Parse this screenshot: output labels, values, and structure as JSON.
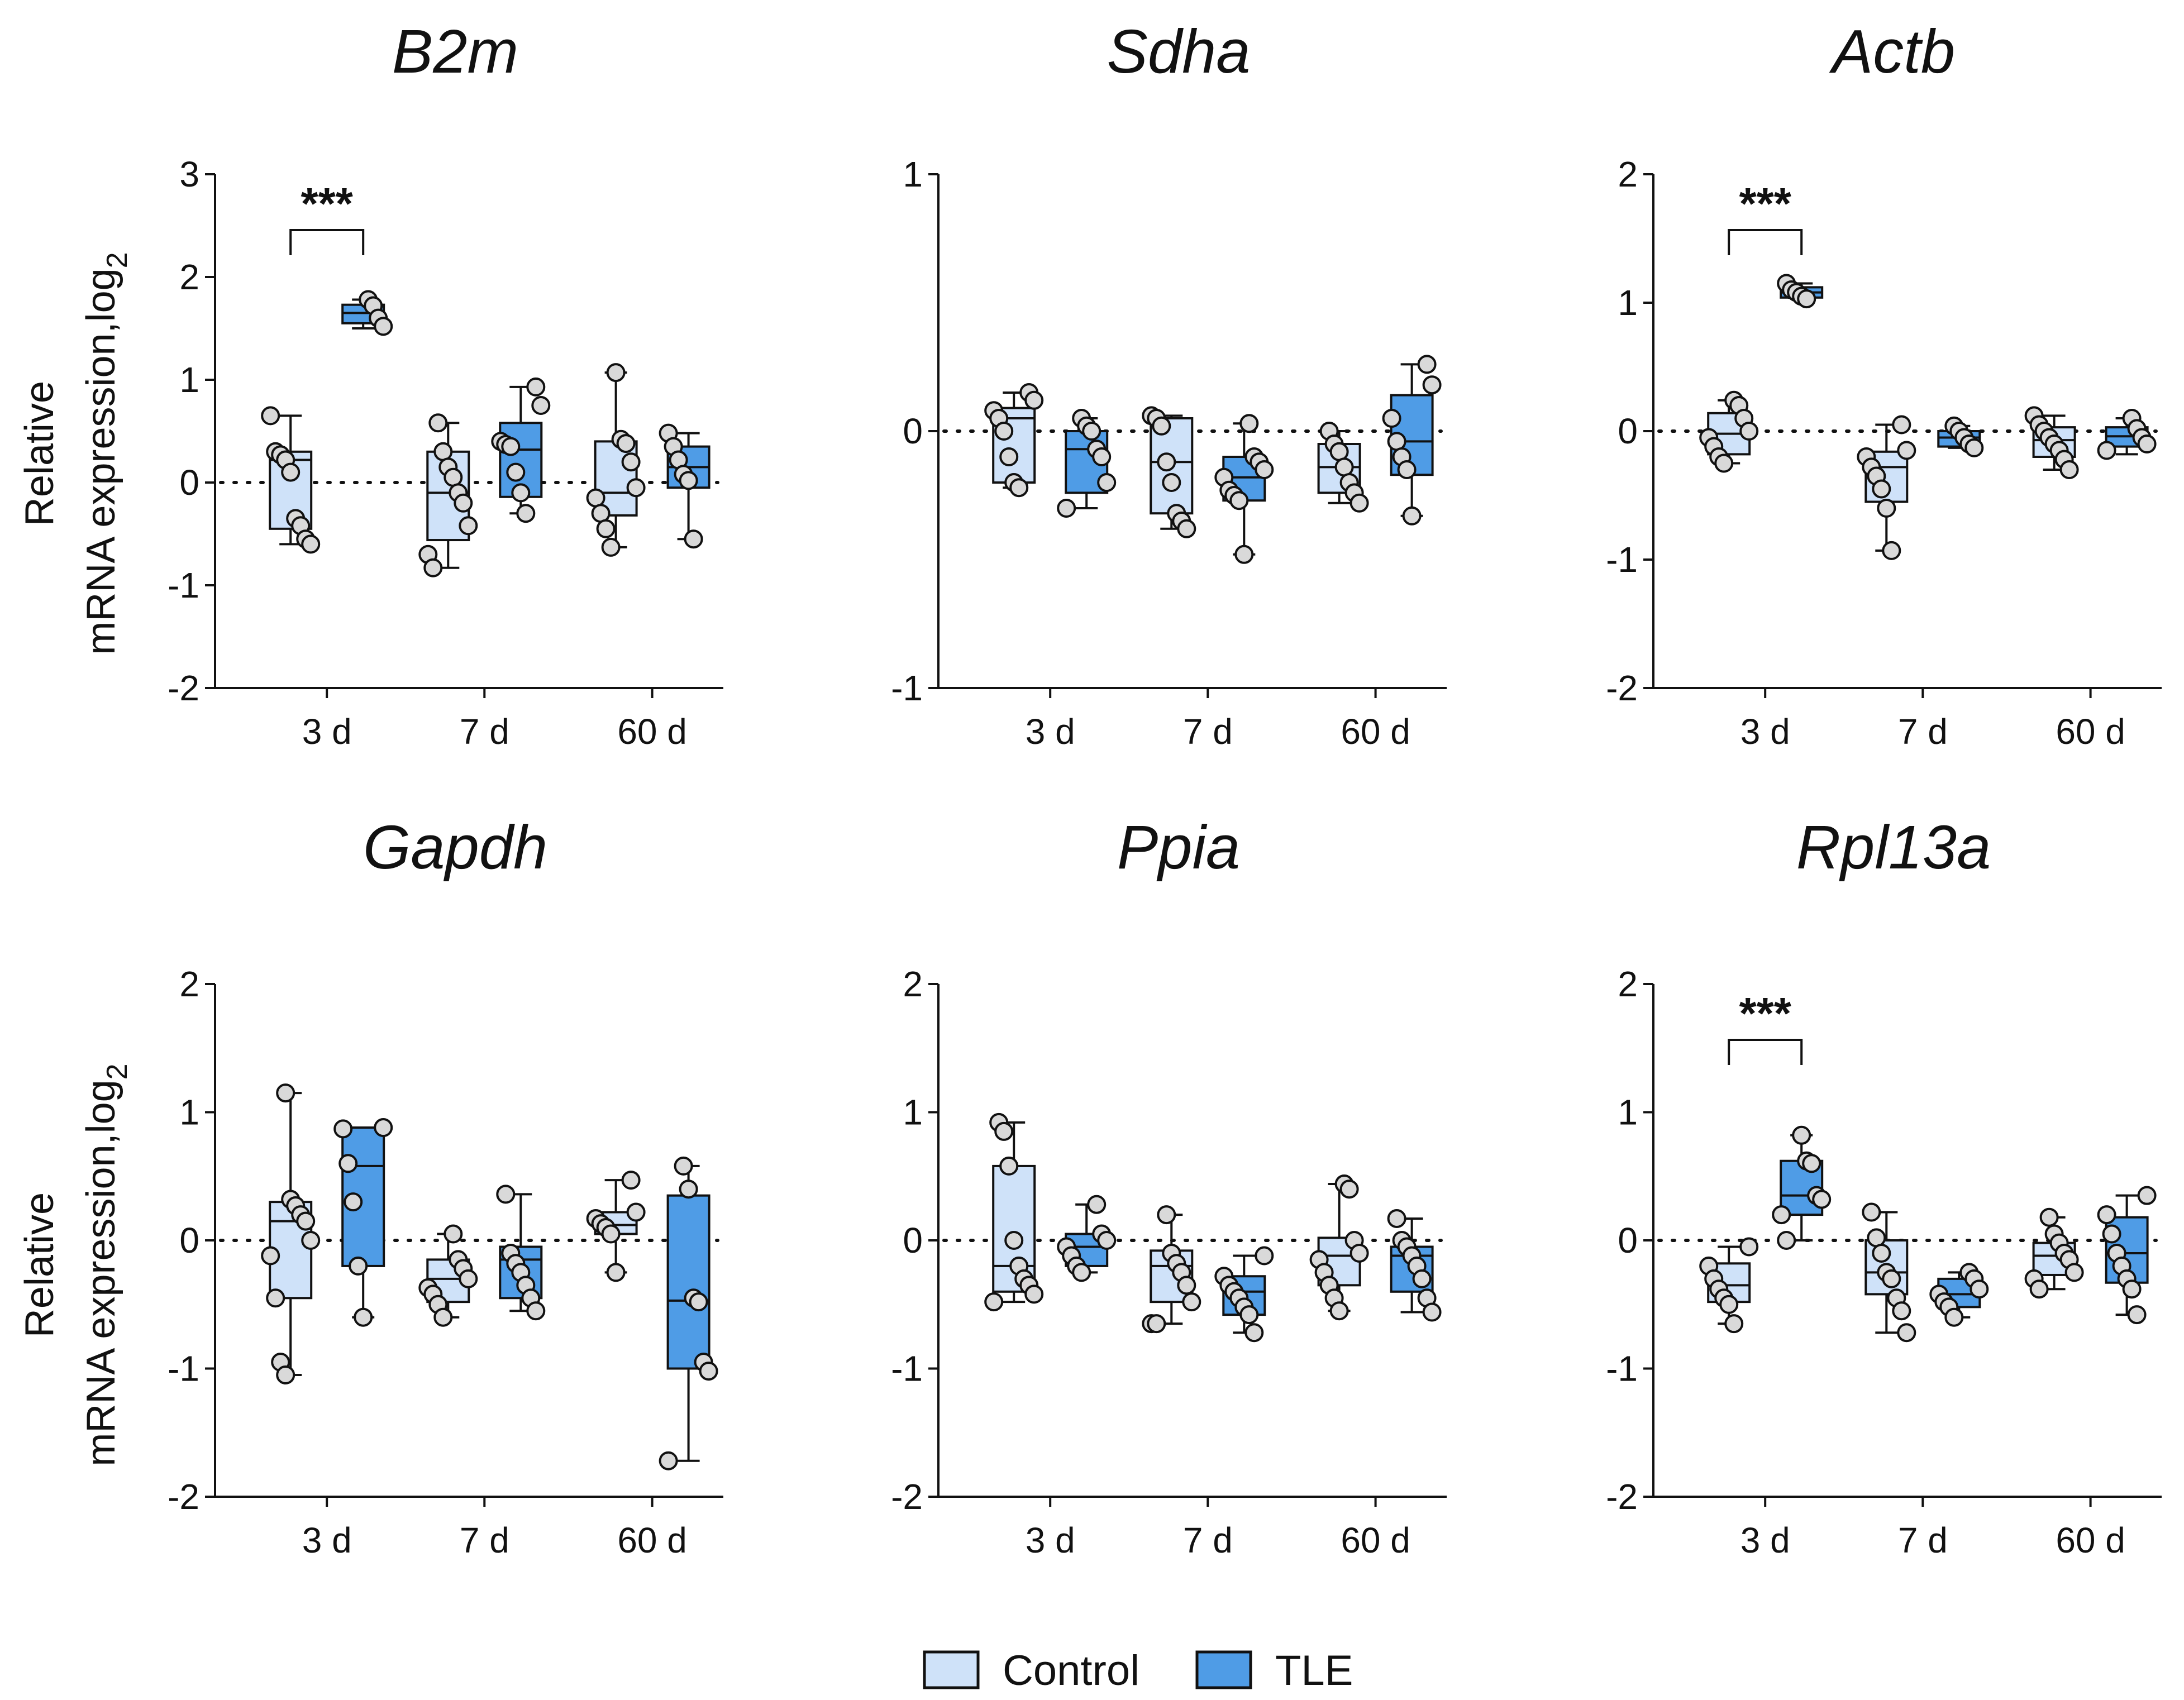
{
  "figure": {
    "y_axis_label_line1": "Relative",
    "y_axis_label_line2": "mRNA expression,log",
    "y_axis_label_sub": "2",
    "categories": [
      "3 d",
      "7 d",
      "60 d"
    ],
    "colors": {
      "control": "#cfe2f9",
      "tle": "#4f9ce6",
      "points": "#d9d9d9"
    },
    "legend": {
      "control_label": "Control",
      "tle_label": "TLE"
    }
  },
  "chart_data": [
    {
      "type": "box",
      "title": "B2m",
      "ylim": [
        -2,
        3
      ],
      "yticks": [
        -2,
        -1,
        0,
        1,
        2,
        3
      ],
      "categories": [
        "3 d",
        "7 d",
        "60 d"
      ],
      "series": [
        {
          "name": "Control",
          "boxes": [
            {
              "min": -0.6,
              "q1": -0.45,
              "median": 0.22,
              "q3": 0.3,
              "max": 0.65,
              "points": [
                0.65,
                0.3,
                0.27,
                0.22,
                0.1,
                -0.35,
                -0.42,
                -0.55,
                -0.6
              ]
            },
            {
              "min": -0.83,
              "q1": -0.56,
              "median": -0.1,
              "q3": 0.3,
              "max": 0.58,
              "points": [
                0.58,
                0.3,
                0.15,
                0.05,
                -0.1,
                -0.2,
                -0.42,
                -0.7,
                -0.83
              ]
            },
            {
              "min": -0.63,
              "q1": -0.32,
              "median": -0.1,
              "q3": 0.4,
              "max": 1.07,
              "points": [
                1.07,
                0.42,
                0.38,
                0.2,
                -0.05,
                -0.15,
                -0.3,
                -0.45,
                -0.63
              ]
            }
          ]
        },
        {
          "name": "TLE",
          "boxes": [
            {
              "min": 1.5,
              "q1": 1.55,
              "median": 1.65,
              "q3": 1.73,
              "max": 1.78,
              "points": [
                1.78,
                1.72,
                1.6,
                1.52
              ]
            },
            {
              "min": -0.3,
              "q1": -0.14,
              "median": 0.32,
              "q3": 0.58,
              "max": 0.93,
              "points": [
                0.93,
                0.75,
                0.4,
                0.37,
                0.35,
                0.1,
                -0.1,
                -0.3
              ]
            },
            {
              "min": -0.55,
              "q1": -0.05,
              "median": 0.15,
              "q3": 0.35,
              "max": 0.48,
              "points": [
                0.48,
                0.35,
                0.22,
                0.08,
                0.02,
                -0.55
              ]
            }
          ]
        }
      ],
      "annotations": [
        {
          "category": "3 d",
          "text": "***"
        }
      ]
    },
    {
      "type": "box",
      "title": "Sdha",
      "ylim": [
        -1,
        1
      ],
      "yticks": [
        -1,
        0,
        1
      ],
      "categories": [
        "3 d",
        "7 d",
        "60 d"
      ],
      "series": [
        {
          "name": "Control",
          "boxes": [
            {
              "min": -0.22,
              "q1": -0.2,
              "median": 0.05,
              "q3": 0.09,
              "max": 0.15,
              "points": [
                0.15,
                0.12,
                0.08,
                0.05,
                0.0,
                -0.1,
                -0.2,
                -0.22
              ]
            },
            {
              "min": -0.38,
              "q1": -0.32,
              "median": -0.12,
              "q3": 0.05,
              "max": 0.06,
              "points": [
                0.06,
                0.05,
                0.02,
                -0.12,
                -0.2,
                -0.32,
                -0.35,
                -0.38
              ]
            },
            {
              "min": -0.28,
              "q1": -0.24,
              "median": -0.14,
              "q3": -0.05,
              "max": 0.0,
              "points": [
                0.0,
                -0.05,
                -0.08,
                -0.14,
                -0.2,
                -0.24,
                -0.28
              ]
            }
          ]
        },
        {
          "name": "TLE",
          "boxes": [
            {
              "min": -0.3,
              "q1": -0.24,
              "median": -0.07,
              "q3": 0.0,
              "max": 0.05,
              "points": [
                0.05,
                0.02,
                0.0,
                -0.07,
                -0.1,
                -0.2,
                -0.3
              ]
            },
            {
              "min": -0.48,
              "q1": -0.27,
              "median": -0.18,
              "q3": -0.1,
              "max": 0.03,
              "points": [
                0.03,
                -0.1,
                -0.12,
                -0.15,
                -0.18,
                -0.23,
                -0.25,
                -0.27,
                -0.48
              ]
            },
            {
              "min": -0.33,
              "q1": -0.17,
              "median": -0.04,
              "q3": 0.14,
              "max": 0.26,
              "points": [
                0.26,
                0.18,
                0.05,
                -0.04,
                -0.1,
                -0.15,
                -0.33
              ]
            }
          ]
        }
      ],
      "annotations": []
    },
    {
      "type": "box",
      "title": "Actb",
      "ylim": [
        -2,
        2
      ],
      "yticks": [
        -2,
        -1,
        0,
        1,
        2
      ],
      "categories": [
        "3 d",
        "7 d",
        "60 d"
      ],
      "series": [
        {
          "name": "Control",
          "boxes": [
            {
              "min": -0.25,
              "q1": -0.18,
              "median": -0.02,
              "q3": 0.14,
              "max": 0.24,
              "points": [
                0.24,
                0.2,
                0.1,
                0.0,
                -0.05,
                -0.12,
                -0.2,
                -0.25
              ]
            },
            {
              "min": -0.93,
              "q1": -0.55,
              "median": -0.28,
              "q3": -0.16,
              "max": 0.05,
              "points": [
                0.05,
                -0.15,
                -0.2,
                -0.28,
                -0.35,
                -0.45,
                -0.6,
                -0.93
              ]
            },
            {
              "min": -0.3,
              "q1": -0.2,
              "median": -0.07,
              "q3": 0.03,
              "max": 0.12,
              "points": [
                0.12,
                0.05,
                0.0,
                -0.05,
                -0.1,
                -0.15,
                -0.22,
                -0.3
              ]
            }
          ]
        },
        {
          "name": "TLE",
          "boxes": [
            {
              "min": 1.03,
              "q1": 1.04,
              "median": 1.08,
              "q3": 1.12,
              "max": 1.15,
              "points": [
                1.15,
                1.1,
                1.08,
                1.05,
                1.03
              ]
            },
            {
              "min": -0.13,
              "q1": -0.12,
              "median": -0.05,
              "q3": 0.0,
              "max": 0.04,
              "points": [
                0.04,
                0.0,
                -0.05,
                -0.1,
                -0.13
              ]
            },
            {
              "min": -0.18,
              "q1": -0.12,
              "median": -0.04,
              "q3": 0.03,
              "max": 0.1,
              "points": [
                0.1,
                0.02,
                -0.05,
                -0.1,
                -0.15
              ]
            }
          ]
        }
      ],
      "annotations": [
        {
          "category": "3 d",
          "text": "***"
        }
      ]
    },
    {
      "type": "box",
      "title": "Gapdh",
      "ylim": [
        -2,
        2
      ],
      "yticks": [
        -2,
        -1,
        0,
        1,
        2
      ],
      "categories": [
        "3 d",
        "7 d",
        "60 d"
      ],
      "series": [
        {
          "name": "Control",
          "boxes": [
            {
              "min": -1.05,
              "q1": -0.45,
              "median": 0.15,
              "q3": 0.3,
              "max": 1.15,
              "points": [
                1.15,
                0.32,
                0.27,
                0.2,
                0.15,
                0.0,
                -0.12,
                -0.45,
                -0.95,
                -1.05
              ]
            },
            {
              "min": -0.6,
              "q1": -0.48,
              "median": -0.3,
              "q3": -0.15,
              "max": 0.05,
              "points": [
                0.05,
                -0.15,
                -0.22,
                -0.3,
                -0.37,
                -0.42,
                -0.5,
                -0.6
              ]
            },
            {
              "min": -0.25,
              "q1": 0.05,
              "median": 0.12,
              "q3": 0.22,
              "max": 0.47,
              "points": [
                0.47,
                0.22,
                0.17,
                0.13,
                0.1,
                0.05,
                -0.25
              ]
            }
          ]
        },
        {
          "name": "TLE",
          "boxes": [
            {
              "min": -0.6,
              "q1": -0.2,
              "median": 0.58,
              "q3": 0.88,
              "max": 0.88,
              "points": [
                0.88,
                0.87,
                0.6,
                0.3,
                -0.2,
                -0.6
              ]
            },
            {
              "min": -0.55,
              "q1": -0.45,
              "median": -0.15,
              "q3": -0.05,
              "max": 0.36,
              "points": [
                0.36,
                -0.1,
                -0.18,
                -0.25,
                -0.35,
                -0.45,
                -0.55
              ]
            },
            {
              "min": -1.72,
              "q1": -1.0,
              "median": -0.47,
              "q3": 0.35,
              "max": 0.58,
              "points": [
                0.58,
                0.4,
                -0.45,
                -0.48,
                -0.95,
                -1.02,
                -1.72
              ]
            }
          ]
        }
      ],
      "annotations": []
    },
    {
      "type": "box",
      "title": "Ppia",
      "ylim": [
        -2,
        2
      ],
      "yticks": [
        -2,
        -1,
        0,
        1,
        2
      ],
      "categories": [
        "3 d",
        "7 d",
        "60 d"
      ],
      "series": [
        {
          "name": "Control",
          "boxes": [
            {
              "min": -0.48,
              "q1": -0.4,
              "median": -0.2,
              "q3": 0.58,
              "max": 0.92,
              "points": [
                0.92,
                0.85,
                0.58,
                0.0,
                -0.2,
                -0.3,
                -0.35,
                -0.42,
                -0.48
              ]
            },
            {
              "min": -0.65,
              "q1": -0.48,
              "median": -0.2,
              "q3": -0.08,
              "max": 0.2,
              "points": [
                0.2,
                -0.1,
                -0.18,
                -0.25,
                -0.35,
                -0.48,
                -0.65,
                -0.65
              ]
            },
            {
              "min": -0.55,
              "q1": -0.35,
              "median": -0.12,
              "q3": 0.02,
              "max": 0.44,
              "points": [
                0.44,
                0.4,
                0.0,
                -0.1,
                -0.15,
                -0.25,
                -0.35,
                -0.45,
                -0.55
              ]
            }
          ]
        },
        {
          "name": "TLE",
          "boxes": [
            {
              "min": -0.25,
              "q1": -0.2,
              "median": -0.05,
              "q3": 0.05,
              "max": 0.28,
              "points": [
                0.28,
                0.05,
                0.0,
                -0.05,
                -0.12,
                -0.2,
                -0.25
              ]
            },
            {
              "min": -0.72,
              "q1": -0.58,
              "median": -0.4,
              "q3": -0.28,
              "max": -0.12,
              "points": [
                -0.12,
                -0.28,
                -0.35,
                -0.4,
                -0.45,
                -0.52,
                -0.58,
                -0.72
              ]
            },
            {
              "min": -0.56,
              "q1": -0.4,
              "median": -0.12,
              "q3": -0.05,
              "max": 0.17,
              "points": [
                0.17,
                0.0,
                -0.05,
                -0.12,
                -0.2,
                -0.3,
                -0.45,
                -0.56
              ]
            }
          ]
        }
      ],
      "annotations": []
    },
    {
      "type": "box",
      "title": "Rpl13a",
      "ylim": [
        -2,
        2
      ],
      "yticks": [
        -2,
        -1,
        0,
        1,
        2
      ],
      "categories": [
        "3 d",
        "7 d",
        "60 d"
      ],
      "series": [
        {
          "name": "Control",
          "boxes": [
            {
              "min": -0.65,
              "q1": -0.48,
              "median": -0.35,
              "q3": -0.18,
              "max": -0.05,
              "points": [
                -0.05,
                -0.2,
                -0.3,
                -0.38,
                -0.45,
                -0.5,
                -0.65
              ]
            },
            {
              "min": -0.72,
              "q1": -0.42,
              "median": -0.25,
              "q3": 0.0,
              "max": 0.22,
              "points": [
                0.22,
                0.02,
                -0.1,
                -0.25,
                -0.3,
                -0.45,
                -0.55,
                -0.72
              ]
            },
            {
              "min": -0.38,
              "q1": -0.27,
              "median": -0.12,
              "q3": -0.02,
              "max": 0.18,
              "points": [
                0.18,
                0.05,
                -0.02,
                -0.1,
                -0.15,
                -0.25,
                -0.3,
                -0.38
              ]
            }
          ]
        },
        {
          "name": "TLE",
          "boxes": [
            {
              "min": 0.0,
              "q1": 0.2,
              "median": 0.35,
              "q3": 0.62,
              "max": 0.82,
              "points": [
                0.82,
                0.62,
                0.6,
                0.35,
                0.32,
                0.2,
                0.0
              ]
            },
            {
              "min": -0.6,
              "q1": -0.52,
              "median": -0.42,
              "q3": -0.3,
              "max": -0.25,
              "points": [
                -0.25,
                -0.3,
                -0.38,
                -0.42,
                -0.48,
                -0.52,
                -0.6
              ]
            },
            {
              "min": -0.58,
              "q1": -0.33,
              "median": -0.1,
              "q3": 0.18,
              "max": 0.35,
              "points": [
                0.35,
                0.2,
                0.05,
                -0.1,
                -0.2,
                -0.3,
                -0.38,
                -0.58
              ]
            }
          ]
        }
      ],
      "annotations": [
        {
          "category": "3 d",
          "text": "***"
        }
      ]
    }
  ]
}
